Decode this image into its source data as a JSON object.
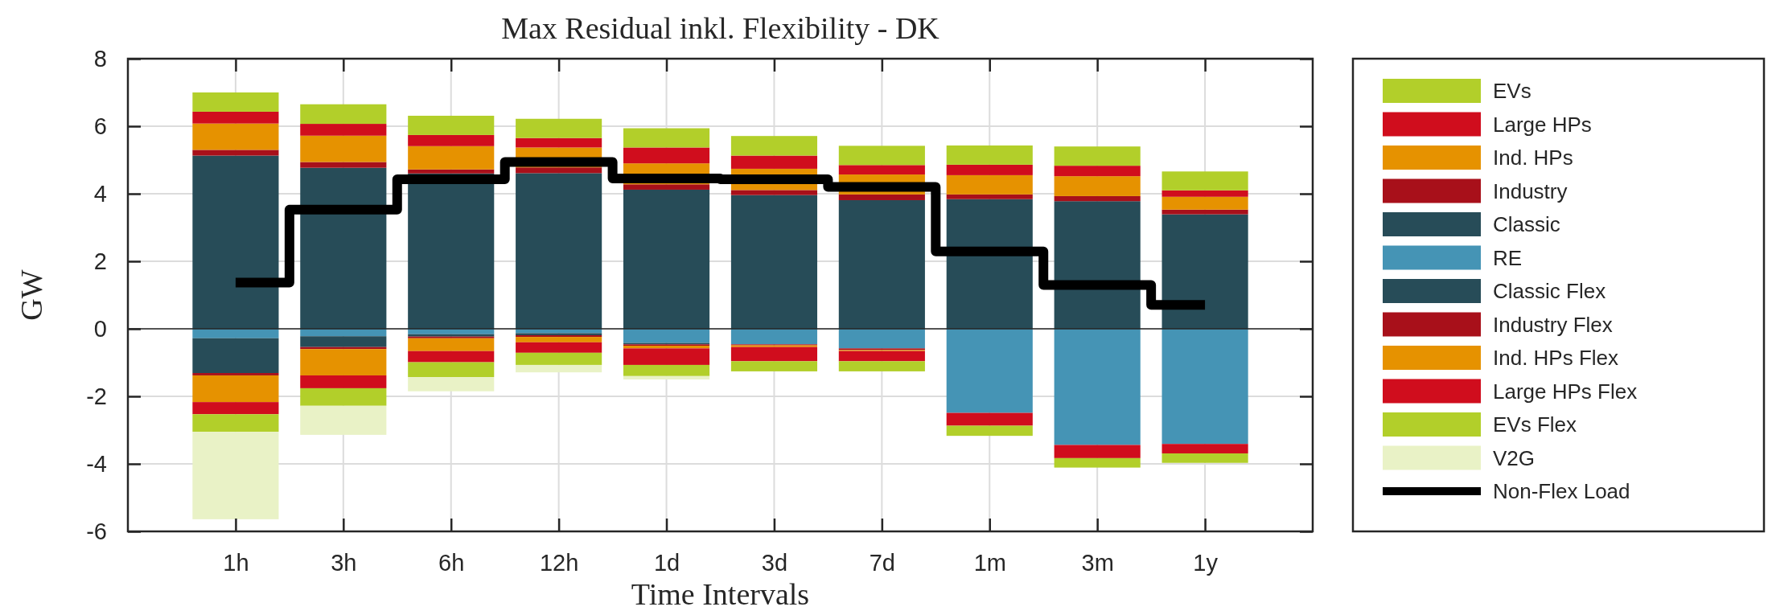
{
  "chart_data": {
    "type": "bar",
    "title": "Max Residual inkl. Flexibility - DK",
    "xlabel": "Time Intervals",
    "ylabel": "GW",
    "categories": [
      "1h",
      "3h",
      "6h",
      "12h",
      "1d",
      "3d",
      "7d",
      "1m",
      "3m",
      "1y"
    ],
    "stacked": true,
    "ylim": [
      -6,
      8
    ],
    "yticks": [
      -6,
      -4,
      -2,
      0,
      2,
      4,
      6,
      8
    ],
    "grid": true,
    "legend": "right",
    "series": [
      {
        "name": "Classic",
        "color": "#274c58",
        "values": [
          5.13,
          4.77,
          4.6,
          4.61,
          4.12,
          3.96,
          3.81,
          3.84,
          3.78,
          3.39
        ]
      },
      {
        "name": "Industry",
        "color": "#a8101a",
        "values": [
          0.17,
          0.17,
          0.12,
          0.17,
          0.16,
          0.15,
          0.17,
          0.14,
          0.15,
          0.14
        ]
      },
      {
        "name": "Ind. HPs",
        "color": "#e69200",
        "values": [
          0.78,
          0.78,
          0.69,
          0.59,
          0.62,
          0.63,
          0.59,
          0.57,
          0.59,
          0.38
        ]
      },
      {
        "name": "Large HPs",
        "color": "#d00d1d",
        "values": [
          0.35,
          0.35,
          0.33,
          0.28,
          0.47,
          0.39,
          0.28,
          0.31,
          0.31,
          0.19
        ]
      },
      {
        "name": "EVs",
        "color": "#b2cf2a",
        "values": [
          0.57,
          0.58,
          0.57,
          0.57,
          0.57,
          0.58,
          0.57,
          0.57,
          0.57,
          0.56
        ]
      },
      {
        "name": "RE",
        "color": "#4594b5",
        "values": [
          -0.28,
          -0.22,
          -0.16,
          -0.13,
          -0.42,
          -0.46,
          -0.58,
          -2.49,
          -3.44,
          -3.41
        ]
      },
      {
        "name": "Classic Flex",
        "color": "#274c58",
        "values": [
          -1.03,
          -0.32,
          -0.07,
          -0.06,
          -0.04,
          0,
          0,
          0,
          0,
          0
        ]
      },
      {
        "name": "Industry Flex",
        "color": "#a8101a",
        "values": [
          -0.07,
          -0.06,
          -0.05,
          -0.05,
          -0.04,
          -0.03,
          -0.05,
          0,
          0,
          0
        ]
      },
      {
        "name": "Ind. HPs Flex",
        "color": "#e69200",
        "values": [
          -0.79,
          -0.78,
          -0.38,
          -0.16,
          -0.08,
          -0.05,
          -0.03,
          0,
          0,
          0
        ]
      },
      {
        "name": "Large HPs Flex",
        "color": "#d00d1d",
        "values": [
          -0.36,
          -0.38,
          -0.33,
          -0.31,
          -0.49,
          -0.42,
          -0.3,
          -0.38,
          -0.39,
          -0.28
        ]
      },
      {
        "name": "EVs Flex",
        "color": "#b2cf2a",
        "values": [
          -0.52,
          -0.52,
          -0.44,
          -0.36,
          -0.33,
          -0.3,
          -0.3,
          -0.3,
          -0.28,
          -0.28
        ]
      },
      {
        "name": "V2G",
        "color": "#e9f2c6",
        "values": [
          -2.59,
          -0.86,
          -0.42,
          -0.22,
          -0.1,
          0,
          0,
          0,
          0,
          0
        ]
      },
      {
        "name": "Non-Flex Load",
        "type": "step",
        "color": "#000000",
        "values": [
          1.37,
          3.53,
          4.43,
          4.94,
          4.45,
          4.43,
          4.2,
          2.29,
          1.3,
          0.71
        ]
      }
    ]
  }
}
